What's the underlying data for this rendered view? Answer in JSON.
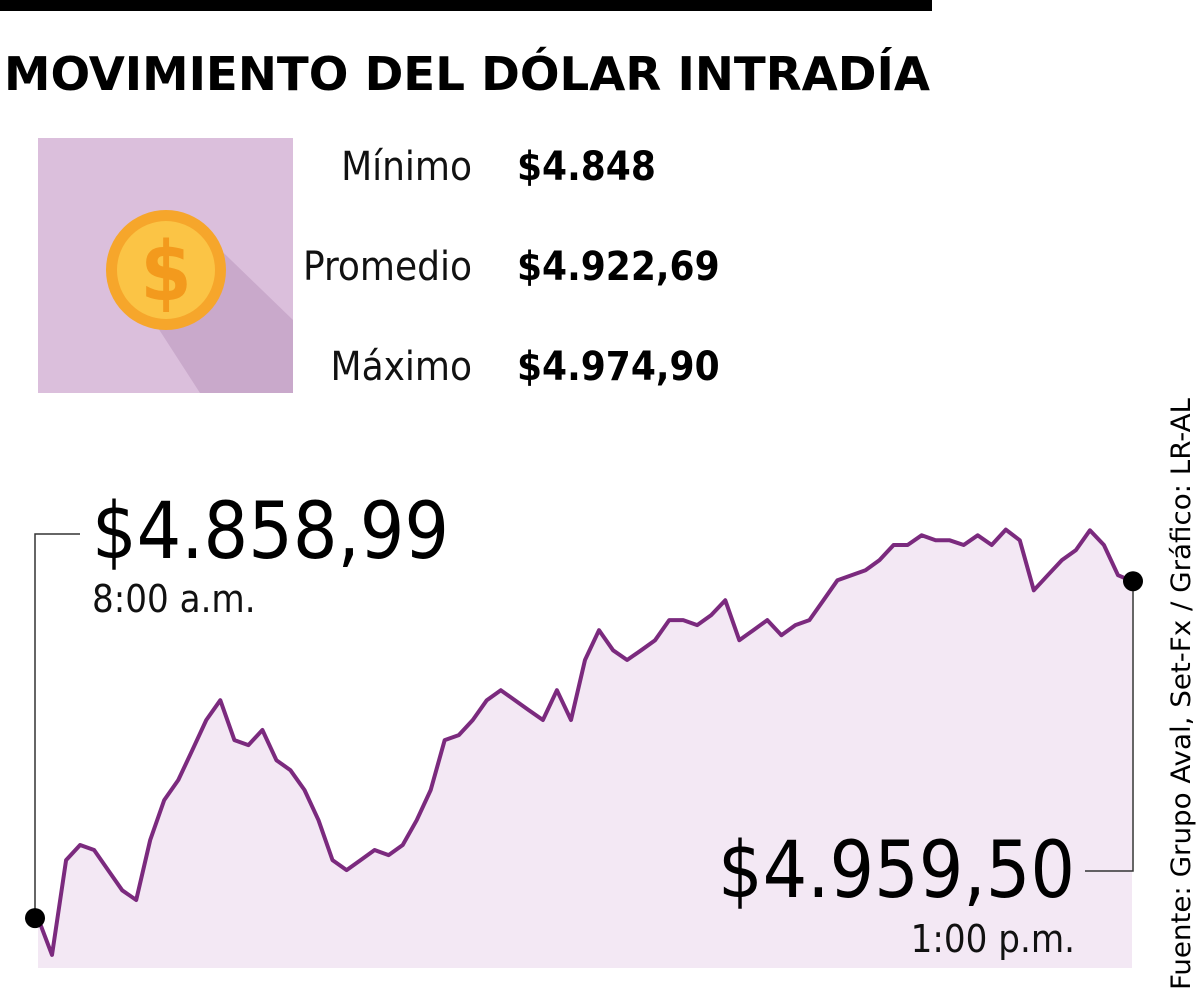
{
  "chart_data": {
    "type": "line",
    "title": "MOVIMIENTO DEL DÓLAR INTRADÍA",
    "stats": [
      {
        "label": "Mínimo",
        "value": "$4.848"
      },
      {
        "label": "Promedio",
        "value": "$4.922,69"
      },
      {
        "label": "Máximo",
        "value": "$4.974,90"
      }
    ],
    "start": {
      "label": "$4.858,99",
      "time": "8:00 a.m."
    },
    "end": {
      "label": "$4.959,50",
      "time": "1:00 p.m."
    },
    "source": "Fuente: Grupo Aval, Set-Fx / Gráfico: LR-AL",
    "color": "#7b2a7e",
    "fill": "#f3e8f4",
    "ylim": [
      4845,
      4990
    ],
    "values": [
      4858.99,
      4848,
      4876.3,
      4880.8,
      4879.3,
      4873.3,
      4867.3,
      4864.4,
      4882.3,
      4894.2,
      4900.2,
      4909.1,
      4918.1,
      4924.0,
      4912.1,
      4910.6,
      4915.1,
      4906.1,
      4903.1,
      4897.2,
      4888.2,
      4876.3,
      4873.3,
      4876.3,
      4879.3,
      4877.8,
      4880.8,
      4888.2,
      4897.2,
      4912.1,
      4913.6,
      4918.1,
      4924.0,
      4927.0,
      4924.0,
      4921.0,
      4918.1,
      4927.0,
      4918.1,
      4936.0,
      4944.9,
      4938.9,
      4936.0,
      4938.9,
      4941.9,
      4947.9,
      4947.9,
      4946.4,
      4949.4,
      4953.8,
      4941.9,
      4944.9,
      4947.9,
      4943.4,
      4946.4,
      4947.9,
      4953.8,
      4959.8,
      4961.3,
      4962.8,
      4965.8,
      4970.3,
      4970.3,
      4973.2,
      4971.7,
      4971.7,
      4970.3,
      4973.2,
      4970.3,
      4974.9,
      4971.7,
      4956.8,
      4961.3,
      4965.8,
      4968.8,
      4974.7,
      4970.3,
      4961.3,
      4959.5
    ]
  }
}
